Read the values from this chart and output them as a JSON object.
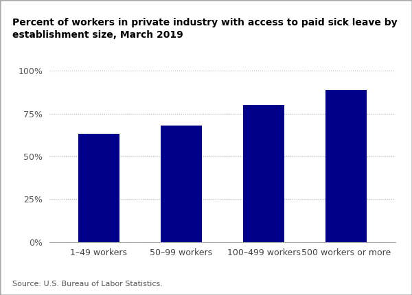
{
  "categories": [
    "1–49 workers",
    "50–99 workers",
    "100–499 workers",
    "500 workers or more"
  ],
  "values": [
    63,
    68,
    80,
    89
  ],
  "bar_color": "#00008B",
  "title": "Percent of workers in private industry with access to paid sick leave by\nestablishment size, March 2019",
  "title_fontsize": 10,
  "ylim": [
    0,
    100
  ],
  "yticks": [
    0,
    25,
    50,
    75,
    100
  ],
  "ytick_labels": [
    "0%",
    "25%",
    "50%",
    "75%",
    "100%"
  ],
  "source_text": "Source: U.S. Bureau of Labor Statistics.",
  "background_color": "#ffffff",
  "grid_color": "#b0b0b0",
  "bar_width": 0.5,
  "border_color": "#aaaaaa"
}
